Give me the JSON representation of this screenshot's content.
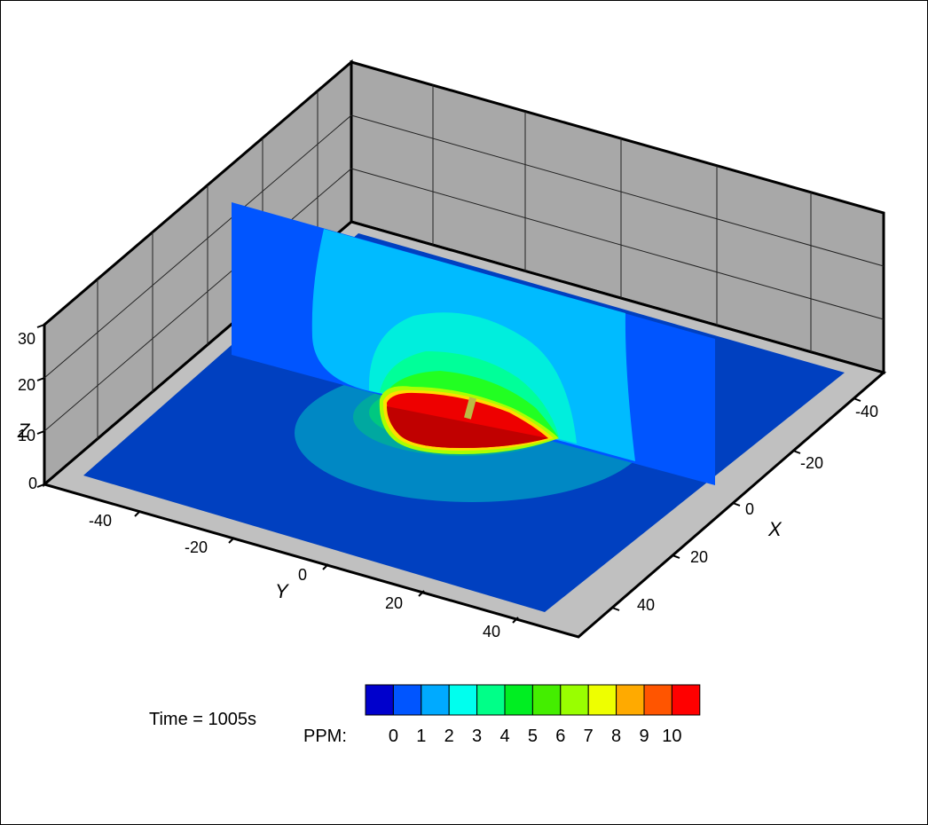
{
  "chart_data": {
    "type": "heatmap",
    "title": "",
    "time_label": "Time = 1005s",
    "x_axis": {
      "label": "X",
      "ticks": [
        "-40",
        "-20",
        "0",
        "20",
        "40"
      ],
      "range": [
        -50,
        50
      ]
    },
    "y_axis": {
      "label": "Y",
      "ticks": [
        "-40",
        "-20",
        "0",
        "20",
        "40"
      ],
      "range": [
        -50,
        50
      ]
    },
    "z_axis": {
      "label": "Z",
      "ticks": [
        "0",
        "10",
        "20",
        "30"
      ],
      "range": [
        0,
        30
      ]
    },
    "legend": {
      "label": "PPM:",
      "levels": [
        "0",
        "1",
        "2",
        "3",
        "4",
        "5",
        "6",
        "7",
        "8",
        "9",
        "10"
      ],
      "colors": [
        "#0000cc",
        "#0055ff",
        "#00aaff",
        "#00ffee",
        "#00ff88",
        "#00ee22",
        "#44ee00",
        "#99ff00",
        "#eeff00",
        "#ffaa00",
        "#ff5500",
        "#ff0000"
      ]
    },
    "grid": true
  }
}
